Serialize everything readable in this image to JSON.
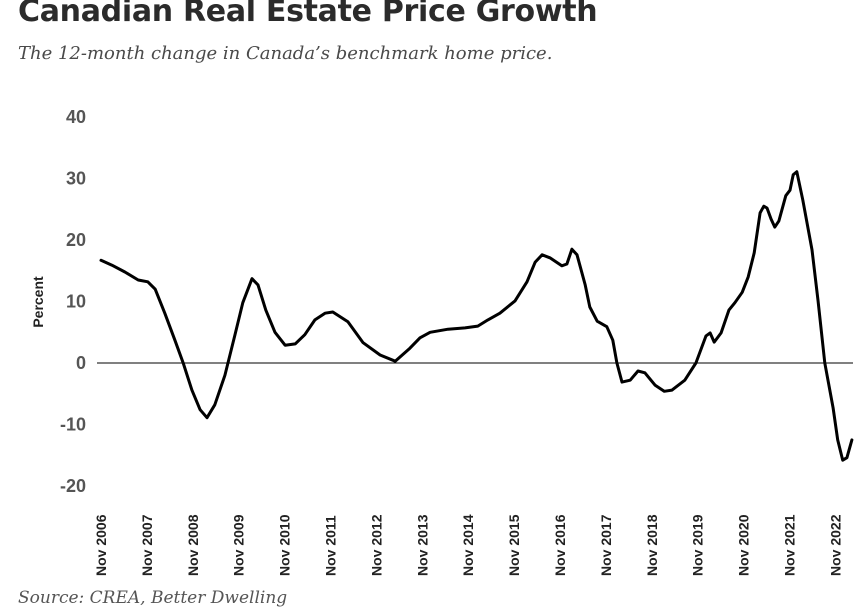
{
  "header": {
    "title": "Canadian Real Estate Price Growth",
    "subtitle": "The 12-month change in Canada’s benchmark home price."
  },
  "footer": {
    "source": "Source: CREA, Better Dwelling"
  },
  "chart_data": {
    "type": "line",
    "title": "Canadian Real Estate Price Growth",
    "subtitle": "The 12-month change in Canada’s benchmark home price.",
    "xlabel": "",
    "ylabel": "Percent",
    "ylim": [
      -20,
      40
    ],
    "yticks": [
      40,
      30,
      20,
      10,
      0,
      -10,
      -20
    ],
    "ytick_labels": [
      "40",
      "30",
      "20",
      "10",
      "0",
      "-10",
      "-20"
    ],
    "x_unit": "years since Nov 2006",
    "xlim": [
      0,
      16.4
    ],
    "xticks": [
      0,
      1,
      2,
      3,
      4,
      5,
      6,
      7,
      8,
      9,
      10,
      11,
      12,
      13,
      14,
      15,
      16
    ],
    "xtick_labels": [
      "Nov 2006",
      "Nov 2007",
      "Nov 2008",
      "Nov 2009",
      "Nov 2010",
      "Nov 2011",
      "Nov 2012",
      "Nov 2013",
      "Nov 2014",
      "Nov 2015",
      "Nov 2016",
      "Nov 2017",
      "Nov 2018",
      "Nov 2019",
      "Nov 2020",
      "Nov 2021",
      "Nov 2022"
    ],
    "zero_line": true,
    "grid": false,
    "legend": "none",
    "colors": {
      "line": "#000000",
      "zero_line": "#000000",
      "ytick": "#555555"
    },
    "series": [
      {
        "name": "12-month change in benchmark home price (%)",
        "x": [
          0,
          0.24,
          0.52,
          0.81,
          1.02,
          1.18,
          1.39,
          1.61,
          1.79,
          1.98,
          2.16,
          2.31,
          2.48,
          2.7,
          2.92,
          3.09,
          3.29,
          3.42,
          3.59,
          3.79,
          4.01,
          4.23,
          4.44,
          4.66,
          4.88,
          5.05,
          5.38,
          5.71,
          6.08,
          6.41,
          6.73,
          6.95,
          7.17,
          7.56,
          7.93,
          8.21,
          8.43,
          8.69,
          9.02,
          9.28,
          9.46,
          9.61,
          9.78,
          10.04,
          10.15,
          10.26,
          10.37,
          10.55,
          10.65,
          10.81,
          11.02,
          11.15,
          11.24,
          11.35,
          11.53,
          11.7,
          11.85,
          12.07,
          12.27,
          12.44,
          12.72,
          12.96,
          13.18,
          13.27,
          13.36,
          13.51,
          13.68,
          13.81,
          13.97,
          14.1,
          14.23,
          14.36,
          14.44,
          14.51,
          14.6,
          14.68,
          14.77,
          14.92,
          15.01,
          15.08,
          15.16,
          15.29,
          15.49,
          15.62,
          15.77,
          15.95,
          16.05,
          16.16,
          16.25,
          16.36
        ],
        "values": [
          16.7,
          15.9,
          14.8,
          13.5,
          13.2,
          12.0,
          8.1,
          3.7,
          0,
          -4.4,
          -7.6,
          -8.9,
          -6.8,
          -2.0,
          4.6,
          9.8,
          13.7,
          12.7,
          8.6,
          5.0,
          2.9,
          3.1,
          4.6,
          7.0,
          8.1,
          8.3,
          6.7,
          3.3,
          1.3,
          0.3,
          2.4,
          4.1,
          5.0,
          5.5,
          5.7,
          6.0,
          7.0,
          8.1,
          10.1,
          13.2,
          16.4,
          17.6,
          17.1,
          15.8,
          16.1,
          18.5,
          17.6,
          12.7,
          9.1,
          6.8,
          5.9,
          3.7,
          0,
          -3.1,
          -2.8,
          -1.3,
          -1.6,
          -3.6,
          -4.6,
          -4.4,
          -2.8,
          0,
          4.4,
          4.9,
          3.4,
          4.9,
          8.6,
          9.8,
          11.5,
          14.0,
          17.9,
          24.4,
          25.5,
          25.2,
          23.4,
          22.1,
          23.1,
          27.2,
          28.1,
          30.6,
          31.1,
          26.5,
          18.4,
          10.2,
          0,
          -7.3,
          -12.5,
          -15.8,
          -15.4,
          -12.5
        ]
      }
    ]
  }
}
